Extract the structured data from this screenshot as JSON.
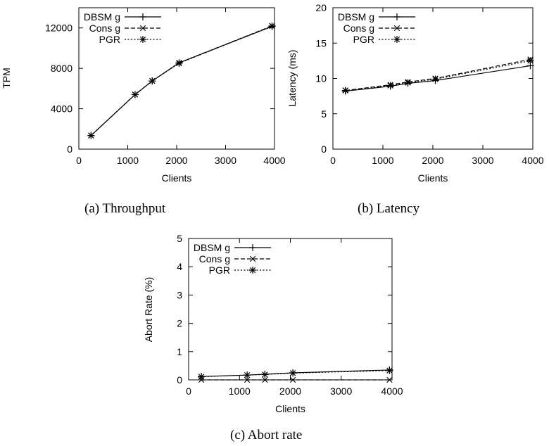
{
  "chart_data": [
    {
      "type": "line",
      "caption": "(a)  Throughput",
      "xlabel": "Clients",
      "ylabel": "TPM",
      "xlim": [
        0,
        4000
      ],
      "ylim": [
        0,
        14000
      ],
      "x_ticks": [
        0,
        1000,
        2000,
        3000,
        4000
      ],
      "y_ticks": [
        0,
        4000,
        8000,
        12000
      ],
      "legend_position": "top-left",
      "series": [
        {
          "name": "DBSM g",
          "marker": "+",
          "dash": "solid",
          "x": [
            250,
            1150,
            1500,
            2050,
            3950
          ],
          "y": [
            1350,
            5400,
            6750,
            8550,
            12150
          ]
        },
        {
          "name": "Cons g",
          "marker": "x",
          "dash": "dashed",
          "x": [
            250,
            1150,
            1500,
            2050,
            3950
          ],
          "y": [
            1350,
            5400,
            6750,
            8550,
            12200
          ]
        },
        {
          "name": "PGR",
          "marker": "*",
          "dash": "dotted",
          "x": [
            250,
            1150,
            1500,
            2050,
            3950
          ],
          "y": [
            1350,
            5400,
            6750,
            8500,
            12200
          ]
        }
      ]
    },
    {
      "type": "line",
      "caption": "(b)  Latency",
      "xlabel": "Clients",
      "ylabel": "Latency (ms)",
      "xlim": [
        0,
        4000
      ],
      "ylim": [
        0,
        20
      ],
      "x_ticks": [
        0,
        1000,
        2000,
        3000,
        4000
      ],
      "y_ticks": [
        0,
        5,
        10,
        15,
        20
      ],
      "legend_position": "top-left",
      "series": [
        {
          "name": "DBSM g",
          "marker": "+",
          "dash": "solid",
          "x": [
            250,
            1150,
            1500,
            2050,
            3950
          ],
          "y": [
            8.2,
            8.9,
            9.3,
            9.7,
            11.8
          ]
        },
        {
          "name": "Cons g",
          "marker": "x",
          "dash": "dashed",
          "x": [
            250,
            1150,
            1500,
            2050,
            3950
          ],
          "y": [
            8.3,
            9.1,
            9.5,
            10.0,
            12.7
          ]
        },
        {
          "name": "PGR",
          "marker": "*",
          "dash": "dotted",
          "x": [
            250,
            1150,
            1500,
            2050,
            3950
          ],
          "y": [
            8.3,
            9.0,
            9.4,
            9.9,
            12.5
          ]
        }
      ]
    },
    {
      "type": "line",
      "caption": "(c)  Abort rate",
      "xlabel": "Clients",
      "ylabel": "Abort Rate (%)",
      "xlim": [
        0,
        4000
      ],
      "ylim": [
        0,
        5
      ],
      "x_ticks": [
        0,
        1000,
        2000,
        3000,
        4000
      ],
      "y_ticks": [
        0,
        1,
        2,
        3,
        4,
        5
      ],
      "legend_position": "top-left",
      "series": [
        {
          "name": "DBSM g",
          "marker": "+",
          "dash": "solid",
          "x": [
            250,
            1150,
            1500,
            2050,
            3950
          ],
          "y": [
            0.12,
            0.17,
            0.2,
            0.25,
            0.35
          ]
        },
        {
          "name": "Cons g",
          "marker": "x",
          "dash": "dashed",
          "x": [
            250,
            1150,
            1500,
            2050,
            3950
          ],
          "y": [
            0.0,
            0.0,
            0.0,
            0.0,
            0.0
          ]
        },
        {
          "name": "PGR",
          "marker": "*",
          "dash": "dotted",
          "x": [
            250,
            1150,
            1500,
            2050,
            3950
          ],
          "y": [
            0.11,
            0.17,
            0.19,
            0.24,
            0.33
          ]
        }
      ]
    }
  ]
}
